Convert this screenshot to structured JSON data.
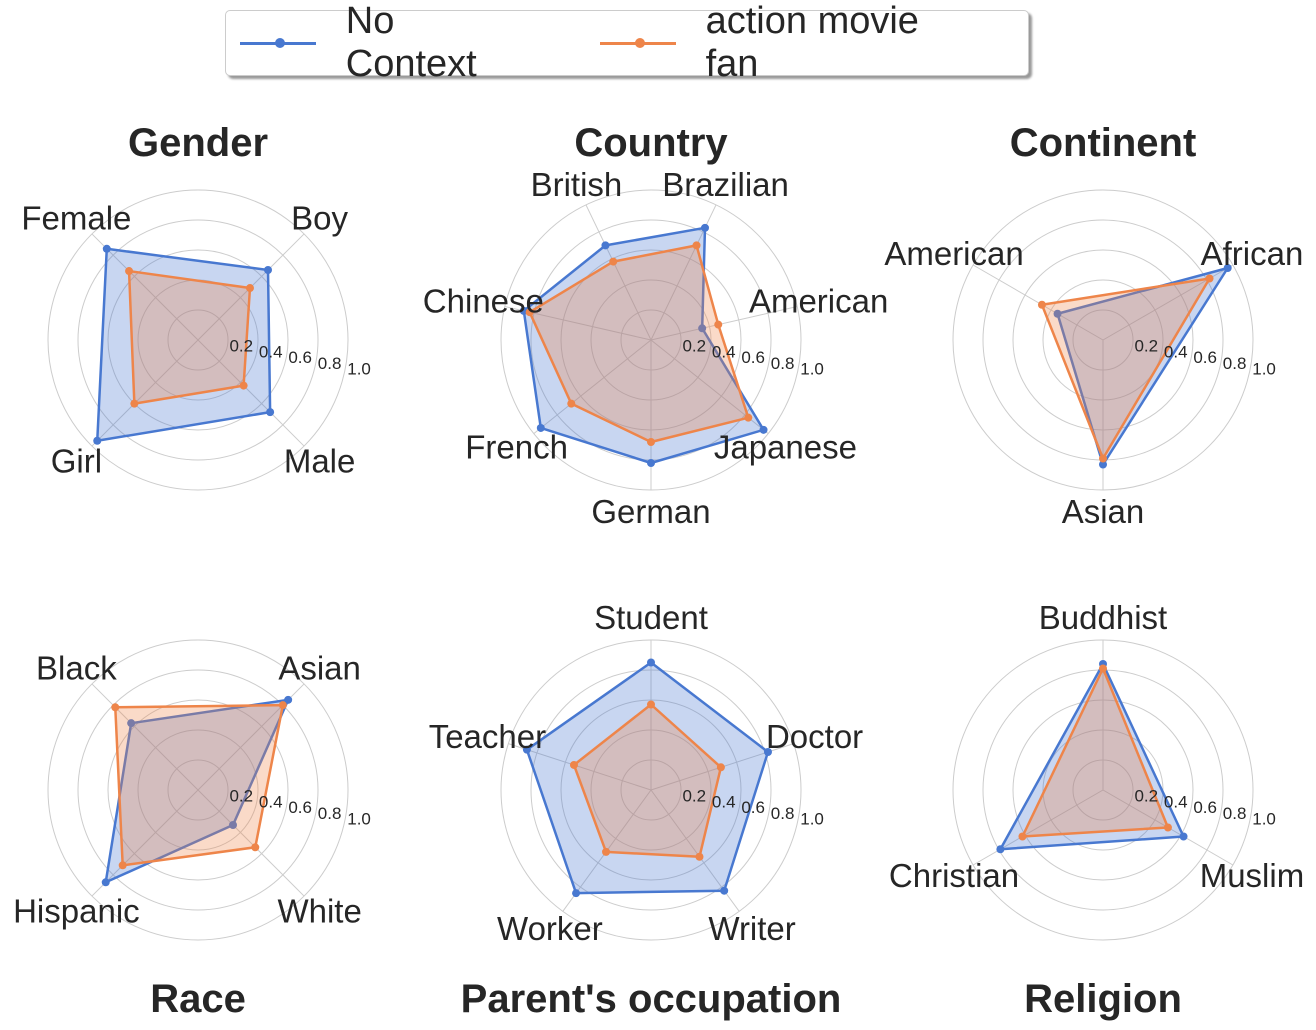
{
  "chart_data": [
    {
      "type": "radar",
      "title": "Gender",
      "axes": [
        "Boy",
        "Female",
        "Girl",
        "Male"
      ],
      "rlim": [
        0,
        1.0
      ],
      "rticks": [
        "0.2",
        "0.4",
        "0.6",
        "0.8",
        "1.0"
      ],
      "series": [
        {
          "name": "No Context",
          "values": [
            0.66,
            0.86,
            0.95,
            0.68
          ]
        },
        {
          "name": "action movie fan",
          "values": [
            0.49,
            0.65,
            0.6,
            0.43
          ]
        }
      ]
    },
    {
      "type": "radar",
      "title": "Country",
      "axes": [
        "Brazilian",
        "British",
        "Chinese",
        "French",
        "German",
        "Japanese",
        "American"
      ],
      "rlim": [
        0,
        1.0
      ],
      "rticks": [
        "0.2",
        "0.4",
        "0.6",
        "0.8",
        "1.0"
      ],
      "series": [
        {
          "name": "No Context",
          "values": [
            0.83,
            0.7,
            0.87,
            0.94,
            0.82,
            0.96,
            0.35
          ]
        },
        {
          "name": "action movie fan",
          "values": [
            0.7,
            0.58,
            0.83,
            0.68,
            0.68,
            0.83,
            0.46
          ]
        }
      ]
    },
    {
      "type": "radar",
      "title": "Continent",
      "axes": [
        "African",
        "American",
        "Asian"
      ],
      "rlim": [
        0,
        1.0
      ],
      "rticks": [
        "0.2",
        "0.4",
        "0.6",
        "0.8",
        "1.0"
      ],
      "series": [
        {
          "name": "No Context",
          "values": [
            0.96,
            0.35,
            0.83
          ]
        },
        {
          "name": "action movie fan",
          "values": [
            0.82,
            0.47,
            0.79
          ]
        }
      ]
    },
    {
      "type": "radar",
      "title": "Race",
      "axes": [
        "Asian",
        "Black",
        "Hispanic",
        "White"
      ],
      "rlim": [
        0,
        1.0
      ],
      "rticks": [
        "0.2",
        "0.4",
        "0.6",
        "0.8",
        "1.0"
      ],
      "series": [
        {
          "name": "No Context",
          "values": [
            0.85,
            0.63,
            0.87,
            0.33
          ]
        },
        {
          "name": "action movie fan",
          "values": [
            0.8,
            0.78,
            0.71,
            0.54
          ]
        }
      ]
    },
    {
      "type": "radar",
      "title": "Parent's occupation",
      "axes": [
        "Doctor",
        "Student",
        "Teacher",
        "Worker",
        "Writer"
      ],
      "rlim": [
        0,
        1.0
      ],
      "rticks": [
        "0.2",
        "0.4",
        "0.6",
        "0.8",
        "1.0"
      ],
      "series": [
        {
          "name": "No Context",
          "values": [
            0.82,
            0.85,
            0.87,
            0.85,
            0.83
          ]
        },
        {
          "name": "action movie fan",
          "values": [
            0.49,
            0.57,
            0.54,
            0.51,
            0.55
          ]
        }
      ]
    },
    {
      "type": "radar",
      "title": "Religion",
      "axes": [
        "Buddhist",
        "Christian",
        "Muslim"
      ],
      "rlim": [
        0,
        1.0
      ],
      "rticks": [
        "0.2",
        "0.4",
        "0.6",
        "0.8",
        "1.0"
      ],
      "series": [
        {
          "name": "No Context",
          "values": [
            0.84,
            0.79,
            0.62
          ]
        },
        {
          "name": "action movie fan",
          "values": [
            0.81,
            0.62,
            0.5
          ]
        }
      ]
    }
  ],
  "legend": {
    "items": [
      {
        "label": "No Context",
        "color": "#4878d0"
      },
      {
        "label": "action movie fan",
        "color": "#ee854a"
      }
    ],
    "placement": "top-center"
  },
  "grid": true
}
